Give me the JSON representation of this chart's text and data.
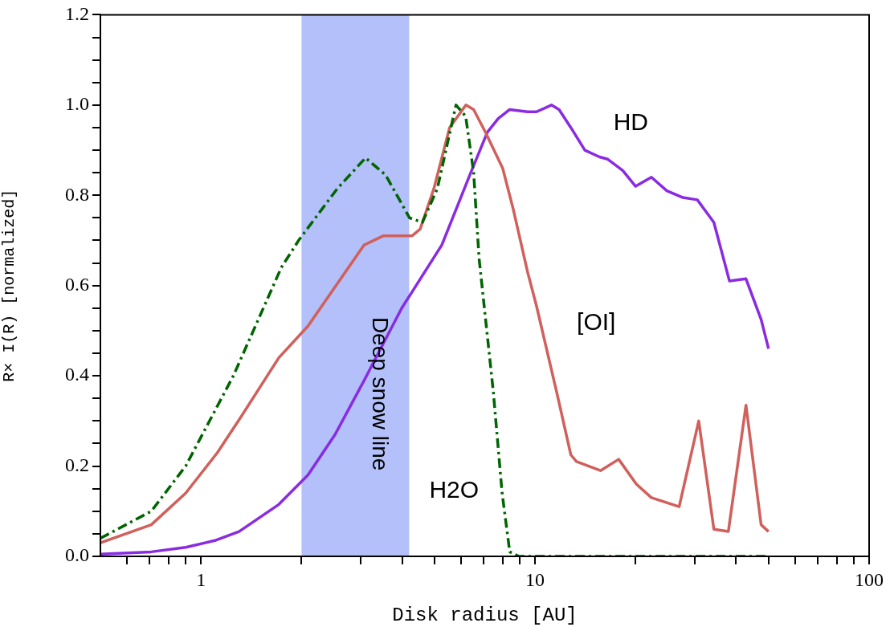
{
  "chart_data": {
    "type": "line",
    "xlabel": "Disk radius [AU]",
    "ylabel": "R× I(R) [normalized]",
    "log": "x",
    "grid": false,
    "legend": false,
    "marker": "none",
    "xlim": [
      0.5,
      100
    ],
    "ylim": [
      0,
      1.2
    ],
    "xticks": [
      {
        "value": 0.6,
        "label": null
      },
      {
        "value": 0.7,
        "label": null
      },
      {
        "value": 0.8,
        "label": null
      },
      {
        "value": 0.9,
        "label": null
      },
      1,
      {
        "value": 2,
        "label": null
      },
      {
        "value": 3,
        "label": null
      },
      {
        "value": 4,
        "label": null
      },
      {
        "value": 5,
        "label": null
      },
      {
        "value": 6,
        "label": null
      },
      {
        "value": 7,
        "label": null
      },
      {
        "value": 8,
        "label": null
      },
      {
        "value": 9,
        "label": null
      },
      10,
      {
        "value": 20,
        "label": null
      },
      {
        "value": 30,
        "label": null
      },
      {
        "value": 40,
        "label": null
      },
      {
        "value": 50,
        "label": null
      },
      {
        "value": 60,
        "label": null
      },
      {
        "value": 70,
        "label": null
      },
      {
        "value": 80,
        "label": null
      },
      {
        "value": 90,
        "label": null
      },
      100
    ],
    "yticks": [
      {
        "value": 0,
        "label": "0.0"
      },
      {
        "value": 0.05,
        "label": null
      },
      {
        "value": 0.1,
        "label": null
      },
      {
        "value": 0.15,
        "label": null
      },
      {
        "value": 0.2,
        "label": "0.2"
      },
      {
        "value": 0.25,
        "label": null
      },
      {
        "value": 0.3,
        "label": null
      },
      {
        "value": 0.35,
        "label": null
      },
      {
        "value": 0.4,
        "label": "0.4"
      },
      {
        "value": 0.45,
        "label": null
      },
      {
        "value": 0.5,
        "label": null
      },
      {
        "value": 0.55,
        "label": null
      },
      {
        "value": 0.6,
        "label": "0.6"
      },
      {
        "value": 0.65,
        "label": null
      },
      {
        "value": 0.7,
        "label": null
      },
      {
        "value": 0.75,
        "label": null
      },
      {
        "value": 0.8,
        "label": "0.8"
      },
      {
        "value": 0.85,
        "label": null
      },
      {
        "value": 0.9,
        "label": null
      },
      {
        "value": 0.95,
        "label": null
      },
      {
        "value": 1,
        "label": "1.0"
      },
      {
        "value": 1.05,
        "label": null
      },
      {
        "value": 1.1,
        "label": null
      },
      {
        "value": 1.15,
        "label": null
      },
      {
        "value": 1.2,
        "label": "1.2"
      }
    ],
    "bands": [
      {
        "axis": "x",
        "from": 2,
        "to": 4.2,
        "label": "Deep snow line",
        "color": "#b3c0fa"
      }
    ],
    "series": [
      {
        "name": "H2O",
        "color": "#006400",
        "line_style": "dashdot",
        "x": [
          0.5,
          0.71,
          0.9,
          1.25,
          1.74,
          1.96,
          2.56,
          3.11,
          3.57,
          4.21,
          4.6,
          5.1,
          5.8,
          6.2,
          6.55,
          6.8,
          7.1,
          7.5,
          7.97,
          8.4,
          8.95,
          15,
          25,
          35,
          50
        ],
        "values": [
          0.04,
          0.1,
          0.2,
          0.4,
          0.64,
          0.7,
          0.815,
          0.883,
          0.845,
          0.75,
          0.74,
          0.815,
          1.0,
          0.975,
          0.85,
          0.66,
          0.53,
          0.365,
          0.14,
          0.01,
          0,
          0,
          0,
          0,
          0
        ]
      },
      {
        "name": "[OI]",
        "color": "#d0605c",
        "line_style": "solid",
        "x": [
          0.5,
          0.71,
          0.9,
          1.12,
          1.32,
          1.71,
          2.09,
          3.08,
          3.51,
          3.92,
          4.28,
          4.53,
          4.98,
          5.55,
          6.21,
          6.55,
          7.1,
          8.0,
          8.6,
          9.5,
          10.1,
          11.6,
          12.8,
          13.3,
          15.7,
          17.8,
          20.1,
          22.3,
          27.0,
          30.9,
          34.3,
          37.9,
          42.8,
          47.5,
          50
        ],
        "values": [
          0.03,
          0.07,
          0.14,
          0.23,
          0.31,
          0.44,
          0.51,
          0.69,
          0.71,
          0.71,
          0.71,
          0.725,
          0.815,
          0.95,
          1.0,
          0.99,
          0.94,
          0.86,
          0.77,
          0.63,
          0.555,
          0.365,
          0.225,
          0.21,
          0.19,
          0.215,
          0.16,
          0.13,
          0.11,
          0.3,
          0.06,
          0.055,
          0.335,
          0.07,
          0.055
        ]
      },
      {
        "name": "HD",
        "color": "#8a2be2",
        "line_style": "solid",
        "x": [
          0.5,
          0.71,
          0.9,
          1.1,
          1.3,
          1.71,
          2.09,
          2.52,
          3.08,
          3.99,
          5.26,
          6.42,
          7.2,
          7.76,
          8.4,
          9.5,
          10.1,
          11.2,
          11.8,
          12.8,
          14.1,
          15.6,
          16.5,
          18.3,
          20.0,
          22.3,
          24.8,
          27.7,
          30.6,
          34.3,
          38.2,
          42.8,
          47.5,
          50
        ],
        "values": [
          0.005,
          0.01,
          0.02,
          0.035,
          0.055,
          0.115,
          0.18,
          0.27,
          0.39,
          0.55,
          0.69,
          0.85,
          0.94,
          0.97,
          0.99,
          0.985,
          0.985,
          1.0,
          0.99,
          0.95,
          0.9,
          0.885,
          0.88,
          0.855,
          0.82,
          0.84,
          0.81,
          0.795,
          0.79,
          0.74,
          0.61,
          0.615,
          0.525,
          0.46
        ]
      }
    ]
  }
}
